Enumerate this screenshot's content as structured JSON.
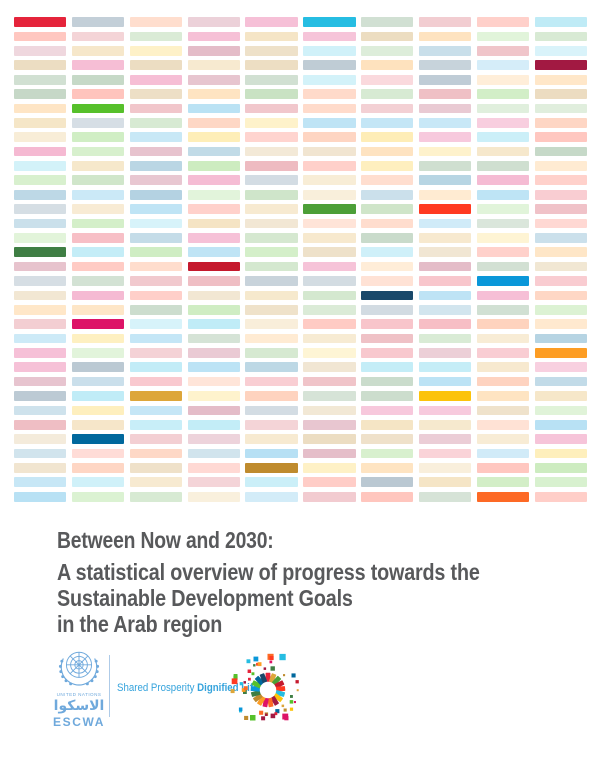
{
  "title": {
    "line1": "Between Now and 2030:",
    "subtitle_line1": "A statistical overview of progress towards the",
    "subtitle_line2": "Sustainable Development Goals",
    "subtitle_line3": "in the Arab region",
    "color": "#58595b"
  },
  "mosaic": {
    "columns": 10,
    "rows": 34,
    "random_seed": 7,
    "pastel_opacity_range": [
      0.17,
      0.3
    ],
    "sdg_palette": [
      {
        "goal": 1,
        "color": "#e5243b"
      },
      {
        "goal": 2,
        "color": "#dda63a"
      },
      {
        "goal": 3,
        "color": "#4c9f38"
      },
      {
        "goal": 4,
        "color": "#c5192d"
      },
      {
        "goal": 5,
        "color": "#ff3a21"
      },
      {
        "goal": 6,
        "color": "#26bde2"
      },
      {
        "goal": 7,
        "color": "#fcc30b"
      },
      {
        "goal": 8,
        "color": "#a21942"
      },
      {
        "goal": 9,
        "color": "#fd6925"
      },
      {
        "goal": 10,
        "color": "#dd1367"
      },
      {
        "goal": 11,
        "color": "#fd9d24"
      },
      {
        "goal": 12,
        "color": "#bf8b2e"
      },
      {
        "goal": 13,
        "color": "#3f7e44"
      },
      {
        "goal": 14,
        "color": "#0a97d9"
      },
      {
        "goal": 15,
        "color": "#56c02b"
      },
      {
        "goal": 16,
        "color": "#00689d"
      },
      {
        "goal": 17,
        "color": "#19486a"
      }
    ],
    "highlights": [
      {
        "row": 0,
        "col": 0,
        "goal": 1
      },
      {
        "row": 0,
        "col": 5,
        "goal": 6
      },
      {
        "row": 3,
        "col": 9,
        "goal": 8
      },
      {
        "row": 6,
        "col": 1,
        "goal": 15
      },
      {
        "row": 13,
        "col": 5,
        "goal": 3
      },
      {
        "row": 13,
        "col": 7,
        "goal": 5
      },
      {
        "row": 16,
        "col": 0,
        "goal": 13
      },
      {
        "row": 17,
        "col": 3,
        "goal": 4
      },
      {
        "row": 18,
        "col": 8,
        "goal": 14
      },
      {
        "row": 19,
        "col": 6,
        "goal": 17
      },
      {
        "row": 21,
        "col": 1,
        "goal": 10
      },
      {
        "row": 23,
        "col": 9,
        "goal": 11
      },
      {
        "row": 26,
        "col": 2,
        "goal": 2
      },
      {
        "row": 26,
        "col": 7,
        "goal": 7
      },
      {
        "row": 29,
        "col": 1,
        "goal": 16
      },
      {
        "row": 31,
        "col": 4,
        "goal": 12
      },
      {
        "row": 33,
        "col": 8,
        "goal": 9
      }
    ]
  },
  "footer": {
    "un_logo": {
      "org_label": "UNITED NATIONS",
      "arabic_label": "الاسكوا",
      "acronym": "ESCWA",
      "color": "#6fa9dc"
    },
    "tagline": {
      "regular": "Shared Prosperity ",
      "bold": "Dignified Life",
      "color": "#35a3dc"
    },
    "icons": {
      "un_emblem": "un-emblem-icon",
      "sdg_wheel": "sdg-wheel-icon"
    }
  }
}
